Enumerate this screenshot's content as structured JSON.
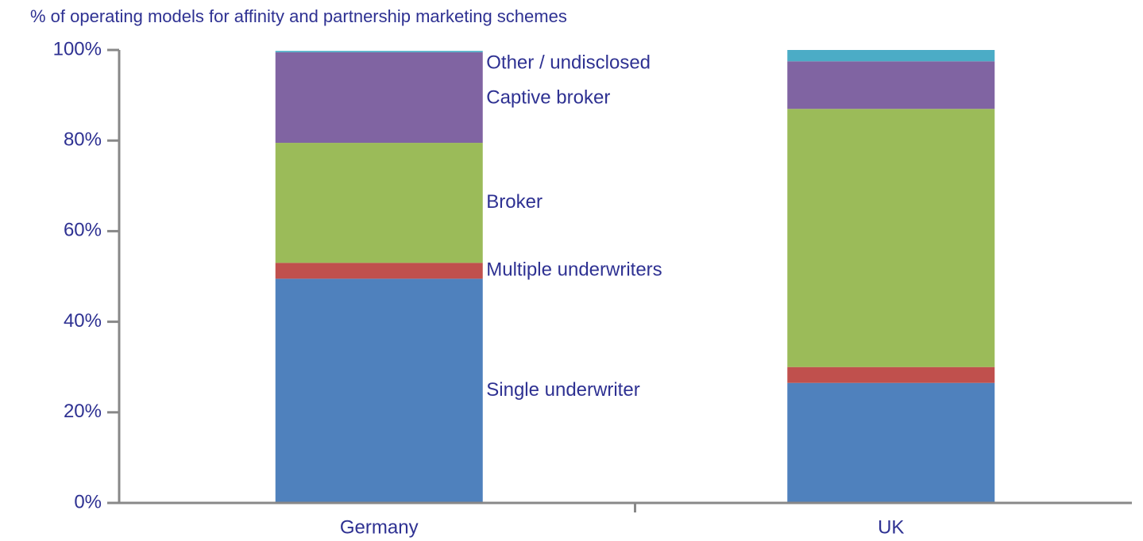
{
  "chart_data": {
    "type": "stacked_bar",
    "title": "% of operating models for affinity and partnership marketing schemes",
    "categories": [
      "Germany",
      "UK"
    ],
    "series": [
      {
        "name": "Single underwriter",
        "color": "#4f81bd",
        "values": [
          49.5,
          26.5
        ]
      },
      {
        "name": "Multiple underwriters",
        "color": "#c0504d",
        "values": [
          3.5,
          3.5
        ]
      },
      {
        "name": "Broker",
        "color": "#9bbb59",
        "values": [
          26.5,
          57
        ]
      },
      {
        "name": "Captive broker",
        "color": "#8064a2",
        "values": [
          20,
          10.5
        ]
      },
      {
        "name": "Other / undisclosed",
        "color": "#4bacc6",
        "values": [
          0.3,
          2.5
        ]
      }
    ],
    "ylim": [
      0,
      100
    ],
    "yticks": [
      {
        "value": 0,
        "label": "0%"
      },
      {
        "value": 20,
        "label": "20%"
      },
      {
        "value": 40,
        "label": "40%"
      },
      {
        "value": 60,
        "label": "60%"
      },
      {
        "value": 80,
        "label": "80%"
      },
      {
        "value": 100,
        "label": "100%"
      }
    ]
  }
}
